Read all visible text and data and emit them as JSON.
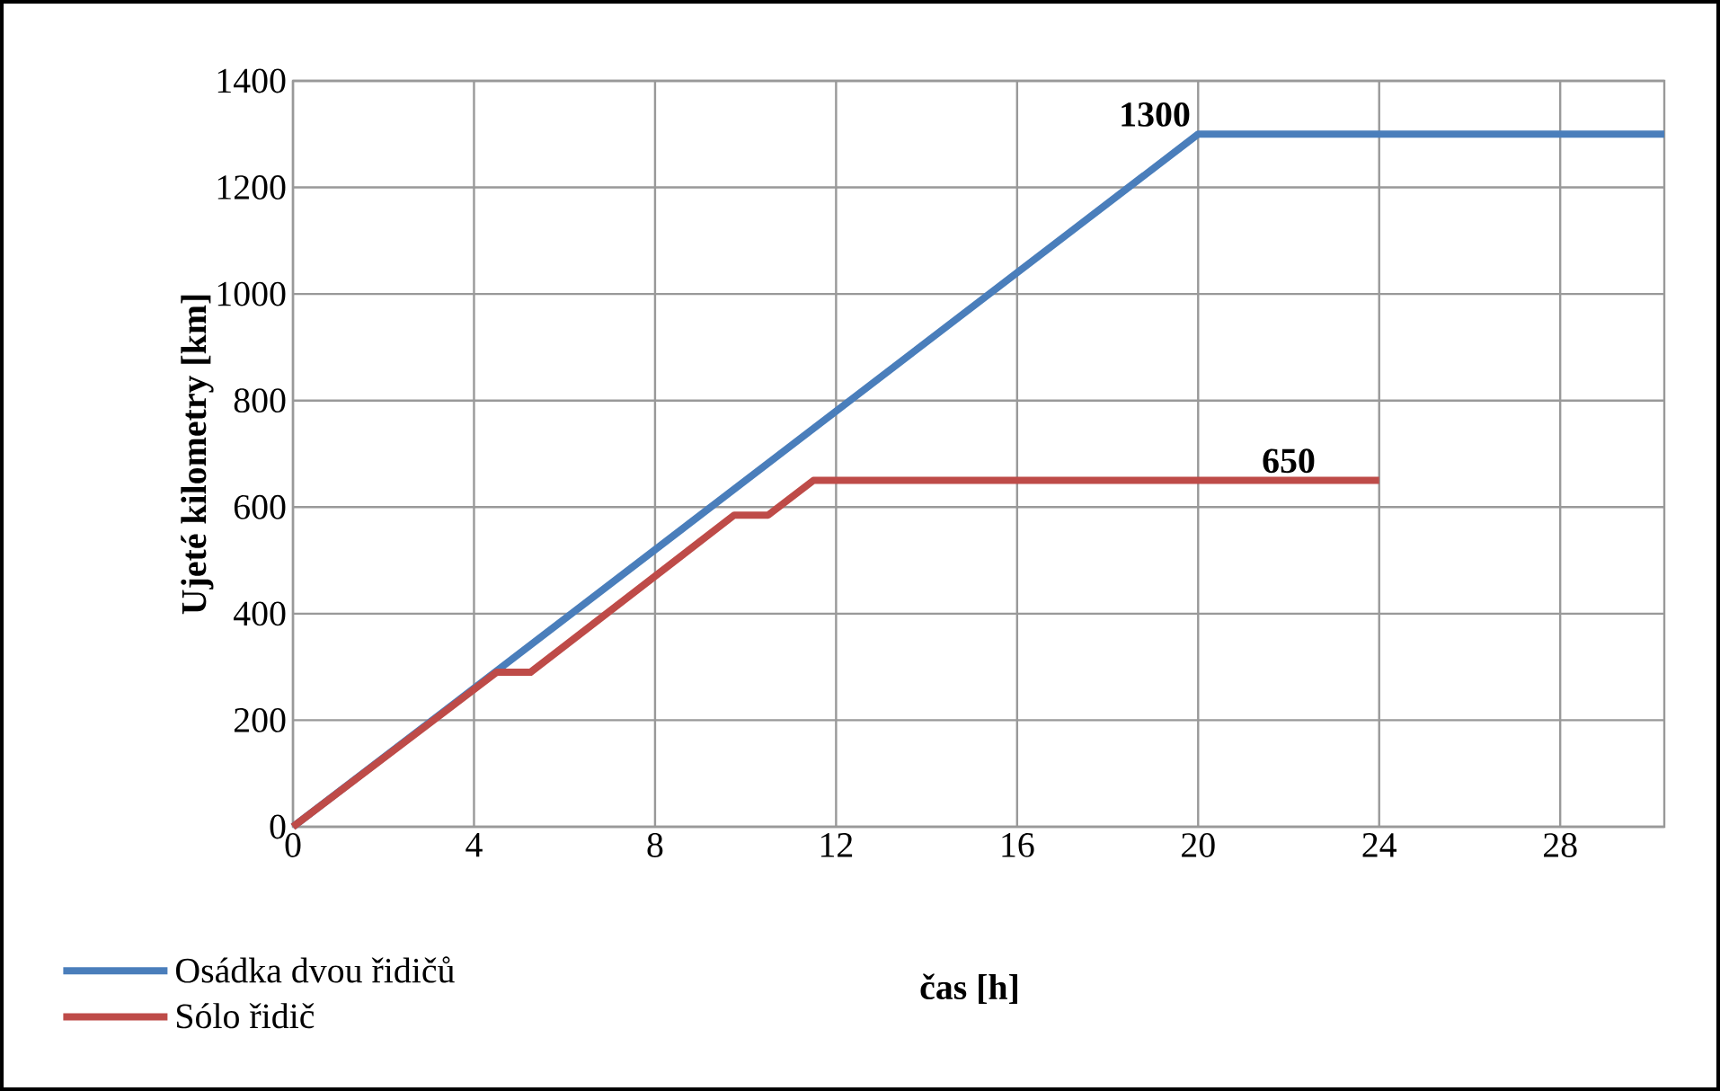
{
  "chart_data": {
    "type": "line",
    "xlabel": "**čas  [h]**",
    "ylabel": "**Ujeté kilometry [km]**",
    "xlim": [
      0,
      30.3
    ],
    "xticks": [
      0,
      4,
      8,
      12,
      16,
      20,
      24,
      28
    ],
    "ylim": [
      0,
      1400
    ],
    "yticks": [
      0,
      200,
      400,
      600,
      800,
      1000,
      1200,
      1400
    ],
    "grid": true,
    "legend": "bottom left",
    "marker": "none",
    "line_style": "solid",
    "series": [
      {
        "name": "Osádka dvou řidičů",
        "color": "#4a7ebb",
        "x": [
          0,
          20,
          30.3
        ],
        "values": [
          0,
          1300,
          1300
        ]
      },
      {
        "name": "Sólo řidič",
        "color": "#be4b48",
        "x": [
          0,
          4.5,
          5.25,
          9.75,
          10.5,
          11.5,
          24
        ],
        "values": [
          0,
          290,
          290,
          585,
          585,
          650,
          650
        ]
      }
    ],
    "annotations": [
      {
        "text": "**1300**",
        "x": 20,
        "y": 1300
      },
      {
        "text": "**650**",
        "x": 22,
        "y": 650
      }
    ]
  }
}
